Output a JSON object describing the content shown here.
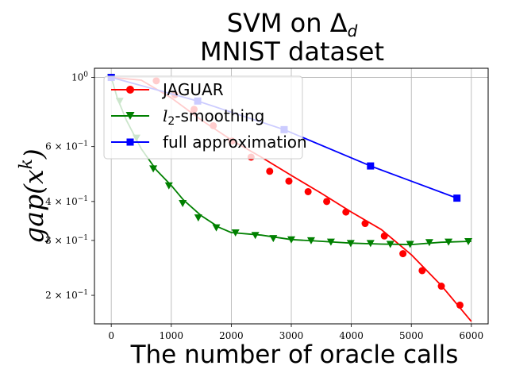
{
  "chart_data": {
    "type": "line",
    "title_line1": "SVM on Δ",
    "title_sub": "d",
    "title_line2": "MNIST dataset",
    "xlabel": "The number of oracle calls",
    "ylabel_main": "gap(x",
    "ylabel_sup": "k",
    "ylabel_close": ")",
    "y_scale": "log",
    "grid": true,
    "legend_position": "top-left",
    "xlim": [
      -280,
      6280
    ],
    "ylim": [
      0.162,
      1.07
    ],
    "x_ticks": [
      {
        "value": 0,
        "label": "0"
      },
      {
        "value": 1000,
        "label": "1000"
      },
      {
        "value": 2000,
        "label": "2000"
      },
      {
        "value": 3000,
        "label": "3000"
      },
      {
        "value": 4000,
        "label": "4000"
      },
      {
        "value": 5000,
        "label": "5000"
      },
      {
        "value": 6000,
        "label": "6000"
      }
    ],
    "y_ticks": [
      {
        "value": 1.0,
        "base": "10",
        "exp": "0"
      },
      {
        "value": 0.6,
        "base": "6 × 10",
        "exp": "−1"
      },
      {
        "value": 0.4,
        "base": "4 × 10",
        "exp": "−1"
      },
      {
        "value": 0.3,
        "base": "3 × 10",
        "exp": "−1"
      },
      {
        "value": 0.2,
        "base": "2 × 10",
        "exp": "−1"
      }
    ],
    "series": [
      {
        "name": "JAGUAR",
        "color": "#ff0000",
        "marker": "circle",
        "x": [
          0,
          500,
          1000,
          1500,
          2000,
          2500,
          3000,
          3500,
          4000,
          4500,
          5000,
          5500,
          6000
        ],
        "y": [
          1.0,
          0.98,
          0.86,
          0.73,
          0.63,
          0.555,
          0.485,
          0.425,
          0.37,
          0.325,
          0.27,
          0.215,
          0.165
        ],
        "marker_x": [
          0,
          750,
          1060,
          1380,
          1700,
          2010,
          2330,
          2640,
          2960,
          3280,
          3590,
          3910,
          4230,
          4550,
          4860,
          5180,
          5500,
          5810
        ],
        "marker_y": [
          1.0,
          0.975,
          0.88,
          0.79,
          0.7,
          0.625,
          0.555,
          0.5,
          0.465,
          0.43,
          0.4,
          0.37,
          0.34,
          0.31,
          0.272,
          0.24,
          0.214,
          0.186
        ]
      },
      {
        "name": "l2-smoothing",
        "name_math": "l",
        "name_sub": "2",
        "name_rest": "-smoothing",
        "color": "#008000",
        "marker": "triangle-down",
        "x": [
          0,
          100,
          250,
          500,
          750,
          1000,
          1200,
          1500,
          1800,
          2000,
          2500,
          3000,
          3500,
          4000,
          4500,
          5000,
          5500,
          6000
        ],
        "y": [
          1.0,
          0.86,
          0.73,
          0.59,
          0.505,
          0.45,
          0.405,
          0.36,
          0.33,
          0.318,
          0.312,
          0.302,
          0.298,
          0.294,
          0.292,
          0.291,
          0.296,
          0.298
        ],
        "marker_x": [
          0,
          140,
          420,
          700,
          960,
          1190,
          1450,
          1750,
          2070,
          2400,
          2700,
          3000,
          3330,
          3660,
          3990,
          4320,
          4650,
          4980,
          5300,
          5620,
          5950
        ],
        "marker_y": [
          1.0,
          0.84,
          0.64,
          0.51,
          0.45,
          0.395,
          0.355,
          0.33,
          0.318,
          0.312,
          0.305,
          0.302,
          0.3,
          0.297,
          0.294,
          0.294,
          0.292,
          0.292,
          0.296,
          0.297,
          0.298
        ]
      },
      {
        "name": "full approximation",
        "color": "#0000ff",
        "marker": "square",
        "x": [
          0,
          1440,
          2880,
          4320,
          5760
        ],
        "y": [
          1.0,
          0.84,
          0.68,
          0.52,
          0.41
        ],
        "marker_x": [
          0,
          1440,
          2880,
          4320,
          5760
        ],
        "marker_y": [
          1.0,
          0.84,
          0.68,
          0.52,
          0.41
        ]
      }
    ]
  }
}
